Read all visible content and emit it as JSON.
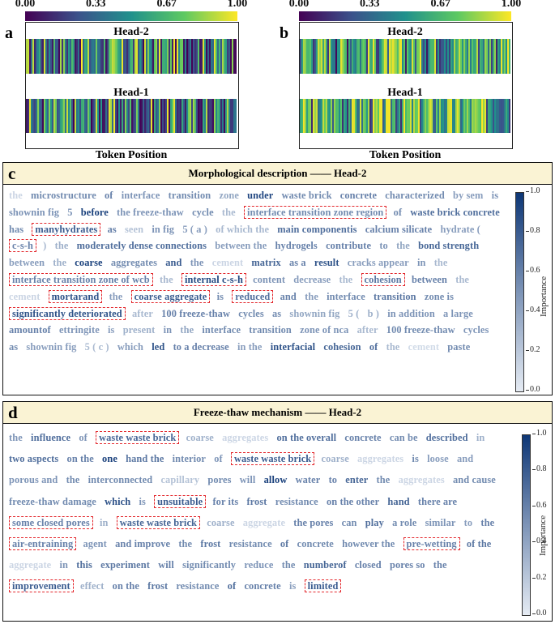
{
  "colorbar_ticks": [
    "0.00",
    "0.33",
    "0.67",
    "1.00"
  ],
  "colormap_hex": [
    "#440154",
    "#3b528b",
    "#21918c",
    "#5ec962",
    "#fde725"
  ],
  "heatmaps": [
    {
      "panel": "a",
      "heads": [
        "Head-2",
        "Head-1"
      ],
      "x_label": "Token Position"
    },
    {
      "panel": "b",
      "heads": [
        "Head-2",
        "Head-1"
      ],
      "x_label": "Token Position"
    }
  ],
  "panels": [
    {
      "letter": "c",
      "title": "Morphological description —— Head-2",
      "importance_label": "Importance",
      "importance_ticks": [
        "1.0",
        "0.8",
        "0.6",
        "0.4",
        "0.2",
        "0.0"
      ],
      "tokens": [
        {
          "t": "the",
          "w": 0.15
        },
        {
          "t": "microstructure",
          "w": 0.55
        },
        {
          "t": "of",
          "w": 0.6
        },
        {
          "t": "interface",
          "w": 0.5
        },
        {
          "t": "transition",
          "w": 0.55
        },
        {
          "t": "zone",
          "w": 0.4
        },
        {
          "t": "under",
          "w": 0.92
        },
        {
          "t": "waste brick",
          "w": 0.55
        },
        {
          "t": "concrete",
          "w": 0.6
        },
        {
          "t": "characterized",
          "w": 0.55
        },
        {
          "t": "by sem",
          "w": 0.45
        },
        {
          "t": "is",
          "w": 0.5
        },
        {
          "t": "shownin fig",
          "w": 0.5
        },
        {
          "t": "5",
          "w": 0.5
        },
        {
          "t": "before",
          "w": 0.95
        },
        {
          "t": "the freeze-thaw",
          "w": 0.5
        },
        {
          "t": "cycle",
          "w": 0.55
        },
        {
          "t": "the",
          "w": 0.3
        },
        {
          "t": "interface transition zone region",
          "w": 0.55,
          "hl": true
        },
        {
          "t": "of",
          "w": 0.55
        },
        {
          "t": "waste brick concrete",
          "w": 0.7
        },
        {
          "t": "has",
          "w": 0.55
        },
        {
          "t": "manyhydrates",
          "w": 0.8,
          "hl": true
        },
        {
          "t": "as",
          "w": 0.6
        },
        {
          "t": "seen",
          "w": 0.25
        },
        {
          "t": "in fig",
          "w": 0.5
        },
        {
          "t": "5 ( a )",
          "w": 0.45
        },
        {
          "t": "of which the",
          "w": 0.3
        },
        {
          "t": "main componentis",
          "w": 0.7
        },
        {
          "t": "calcium silicate",
          "w": 0.6
        },
        {
          "t": "hydrate (",
          "w": 0.45
        },
        {
          "t": "c-s-h",
          "w": 0.6,
          "hl": true
        },
        {
          "t": ")",
          "w": 0.3
        },
        {
          "t": "the",
          "w": 0.35
        },
        {
          "t": "moderately dense connections",
          "w": 0.7
        },
        {
          "t": "between the",
          "w": 0.45
        },
        {
          "t": "hydrogels",
          "w": 0.6
        },
        {
          "t": "contribute",
          "w": 0.6
        },
        {
          "t": "to",
          "w": 0.5
        },
        {
          "t": "the",
          "w": 0.4
        },
        {
          "t": "bond strength",
          "w": 0.75
        },
        {
          "t": "between",
          "w": 0.45
        },
        {
          "t": "the",
          "w": 0.35
        },
        {
          "t": "coarse",
          "w": 0.95
        },
        {
          "t": "aggregates",
          "w": 0.55
        },
        {
          "t": "and",
          "w": 0.8
        },
        {
          "t": "the",
          "w": 0.5
        },
        {
          "t": "cement",
          "w": 0.15
        },
        {
          "t": "matrix",
          "w": 0.75
        },
        {
          "t": "as a",
          "w": 0.6
        },
        {
          "t": "result",
          "w": 0.85
        },
        {
          "t": "cracks appear",
          "w": 0.45
        },
        {
          "t": "in",
          "w": 0.5
        },
        {
          "t": "the",
          "w": 0.3
        },
        {
          "t": "interface transition zone of wcb",
          "w": 0.6,
          "hl": true
        },
        {
          "t": "the",
          "w": 0.3
        },
        {
          "t": "internal c-s-h",
          "w": 0.9,
          "hl": true
        },
        {
          "t": "content",
          "w": 0.5
        },
        {
          "t": "decrease",
          "w": 0.45
        },
        {
          "t": "the",
          "w": 0.3
        },
        {
          "t": "cohesion",
          "w": 0.65,
          "hl": true
        },
        {
          "t": "between",
          "w": 0.6
        },
        {
          "t": "the",
          "w": 0.3
        },
        {
          "t": "cement",
          "w": 0.15
        },
        {
          "t": "mortarand",
          "w": 0.85,
          "hl": true
        },
        {
          "t": "the",
          "w": 0.45
        },
        {
          "t": "coarse aggregate",
          "w": 0.8,
          "hl": true
        },
        {
          "t": "is",
          "w": 0.55
        },
        {
          "t": "reduced",
          "w": 0.7,
          "hl": true
        },
        {
          "t": "and",
          "w": 0.6
        },
        {
          "t": "the",
          "w": 0.45
        },
        {
          "t": "interface",
          "w": 0.55
        },
        {
          "t": "transition",
          "w": 0.65
        },
        {
          "t": "zone is",
          "w": 0.55
        },
        {
          "t": "significantly deteriorated",
          "w": 0.85,
          "hl": true
        },
        {
          "t": "after",
          "w": 0.3
        },
        {
          "t": "100 freeze-thaw",
          "w": 0.6
        },
        {
          "t": "cycles",
          "w": 0.55
        },
        {
          "t": "as",
          "w": 0.55
        },
        {
          "t": "shownin fig",
          "w": 0.4
        },
        {
          "t": "5 (",
          "w": 0.35
        },
        {
          "t": "b )",
          "w": 0.35
        },
        {
          "t": "in addition",
          "w": 0.5
        },
        {
          "t": "a large",
          "w": 0.5
        },
        {
          "t": "amountof",
          "w": 0.6
        },
        {
          "t": "ettringite",
          "w": 0.5
        },
        {
          "t": "is",
          "w": 0.45
        },
        {
          "t": "present",
          "w": 0.35
        },
        {
          "t": "in",
          "w": 0.5
        },
        {
          "t": "the",
          "w": 0.4
        },
        {
          "t": "interface",
          "w": 0.55
        },
        {
          "t": "transition",
          "w": 0.55
        },
        {
          "t": "zone of nca",
          "w": 0.5
        },
        {
          "t": "after",
          "w": 0.3
        },
        {
          "t": "100 freeze-thaw",
          "w": 0.55
        },
        {
          "t": "cycles",
          "w": 0.5
        },
        {
          "t": "as",
          "w": 0.55
        },
        {
          "t": "shownin fig",
          "w": 0.45
        },
        {
          "t": "5 ( c )",
          "w": 0.3
        },
        {
          "t": "which",
          "w": 0.45
        },
        {
          "t": "led",
          "w": 0.85
        },
        {
          "t": "to a decrease",
          "w": 0.6
        },
        {
          "t": "in the",
          "w": 0.45
        },
        {
          "t": "interfacial",
          "w": 0.85
        },
        {
          "t": "cohesion",
          "w": 0.75
        },
        {
          "t": "of",
          "w": 0.7
        },
        {
          "t": "the",
          "w": 0.3
        },
        {
          "t": "cement",
          "w": 0.12
        },
        {
          "t": "paste",
          "w": 0.55
        }
      ]
    },
    {
      "letter": "d",
      "title": "Freeze-thaw mechanism —— Head-2",
      "importance_label": "Importance",
      "importance_ticks": [
        "1.0",
        "0.8",
        "0.6",
        "0.4",
        "0.2",
        "0.0"
      ],
      "tokens": [
        {
          "t": "the",
          "w": 0.5
        },
        {
          "t": "influence",
          "w": 0.7
        },
        {
          "t": "of",
          "w": 0.5
        },
        {
          "t": "waste waste brick",
          "w": 0.75,
          "hl": true
        },
        {
          "t": "coarse",
          "w": 0.35
        },
        {
          "t": "aggregates",
          "w": 0.15
        },
        {
          "t": "on the overall",
          "w": 0.7
        },
        {
          "t": "concrete",
          "w": 0.6
        },
        {
          "t": "can be",
          "w": 0.55
        },
        {
          "t": "described",
          "w": 0.7
        },
        {
          "t": "in",
          "w": 0.35
        },
        {
          "t": "two aspects",
          "w": 0.7
        },
        {
          "t": "on the",
          "w": 0.6
        },
        {
          "t": "one",
          "w": 0.95
        },
        {
          "t": "hand the",
          "w": 0.65
        },
        {
          "t": "interior",
          "w": 0.55
        },
        {
          "t": "of",
          "w": 0.5
        },
        {
          "t": "waste waste brick",
          "w": 0.8,
          "hl": true
        },
        {
          "t": "coarse",
          "w": 0.35
        },
        {
          "t": "aggregates",
          "w": 0.15
        },
        {
          "t": "is",
          "w": 0.55
        },
        {
          "t": "loose",
          "w": 0.45
        },
        {
          "t": "and",
          "w": 0.45
        },
        {
          "t": "porous and",
          "w": 0.5
        },
        {
          "t": "the",
          "w": 0.55
        },
        {
          "t": "interconnected",
          "w": 0.55
        },
        {
          "t": "capillary",
          "w": 0.25
        },
        {
          "t": "pores",
          "w": 0.55
        },
        {
          "t": "will",
          "w": 0.5
        },
        {
          "t": "allow",
          "w": 0.95
        },
        {
          "t": "water",
          "w": 0.6
        },
        {
          "t": "to",
          "w": 0.6
        },
        {
          "t": "enter",
          "w": 0.75
        },
        {
          "t": "the",
          "w": 0.55
        },
        {
          "t": "aggregates",
          "w": 0.15
        },
        {
          "t": "and cause",
          "w": 0.55
        },
        {
          "t": "freeze-thaw damage",
          "w": 0.55
        },
        {
          "t": "which",
          "w": 0.85
        },
        {
          "t": "is",
          "w": 0.5
        },
        {
          "t": "unsuitable",
          "w": 0.8,
          "hl": true
        },
        {
          "t": "for its",
          "w": 0.6
        },
        {
          "t": "frost",
          "w": 0.65
        },
        {
          "t": "resistance",
          "w": 0.55
        },
        {
          "t": "on the other",
          "w": 0.6
        },
        {
          "t": "hand",
          "w": 0.75
        },
        {
          "t": "there are",
          "w": 0.6
        },
        {
          "t": "some closed pores",
          "w": 0.6,
          "hl": true
        },
        {
          "t": "in",
          "w": 0.35
        },
        {
          "t": "waste waste brick",
          "w": 0.75,
          "hl": true
        },
        {
          "t": "coarse",
          "w": 0.35
        },
        {
          "t": "aggregate",
          "w": 0.15
        },
        {
          "t": "the pores",
          "w": 0.6
        },
        {
          "t": "can",
          "w": 0.55
        },
        {
          "t": "play",
          "w": 0.7
        },
        {
          "t": "a role",
          "w": 0.55
        },
        {
          "t": "similar",
          "w": 0.5
        },
        {
          "t": "to",
          "w": 0.45
        },
        {
          "t": "the",
          "w": 0.6
        },
        {
          "t": "air-entraining",
          "w": 0.6,
          "hl": true
        },
        {
          "t": "agent",
          "w": 0.5
        },
        {
          "t": "and improve",
          "w": 0.6
        },
        {
          "t": "the",
          "w": 0.55
        },
        {
          "t": "frost",
          "w": 0.65
        },
        {
          "t": "resistance",
          "w": 0.55
        },
        {
          "t": "of",
          "w": 0.65
        },
        {
          "t": "concrete",
          "w": 0.55
        },
        {
          "t": "however the",
          "w": 0.55
        },
        {
          "t": "pre-wetting",
          "w": 0.6,
          "hl": true
        },
        {
          "t": "of the",
          "w": 0.65
        },
        {
          "t": "aggregate",
          "w": 0.15
        },
        {
          "t": "in",
          "w": 0.5
        },
        {
          "t": "this",
          "w": 0.7
        },
        {
          "t": "experiment",
          "w": 0.65
        },
        {
          "t": "will",
          "w": 0.6
        },
        {
          "t": "significantly",
          "w": 0.55
        },
        {
          "t": "reduce",
          "w": 0.5
        },
        {
          "t": "the",
          "w": 0.55
        },
        {
          "t": "numberof",
          "w": 0.75
        },
        {
          "t": "closed",
          "w": 0.6
        },
        {
          "t": "pores so",
          "w": 0.6
        },
        {
          "t": "the",
          "w": 0.6
        },
        {
          "t": "improvement",
          "w": 0.8,
          "hl": true
        },
        {
          "t": "effect",
          "w": 0.35
        },
        {
          "t": "on the",
          "w": 0.6
        },
        {
          "t": "frost",
          "w": 0.65
        },
        {
          "t": "resistance",
          "w": 0.55
        },
        {
          "t": "of",
          "w": 0.7
        },
        {
          "t": "concrete",
          "w": 0.6
        },
        {
          "t": "is",
          "w": 0.45
        },
        {
          "t": "limited",
          "w": 0.8,
          "hl": true
        }
      ]
    }
  ]
}
